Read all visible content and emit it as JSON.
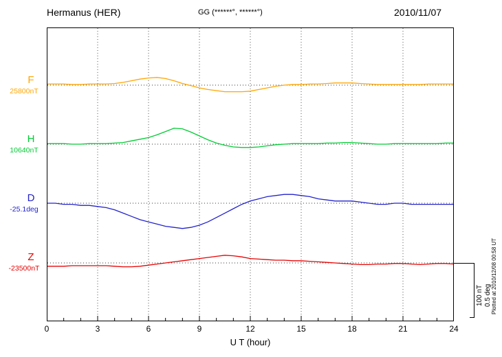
{
  "header": {
    "station": "Hermanus (HER)",
    "coords": "GG (******°, ******°)",
    "date": "2010/11/07"
  },
  "axis": {
    "title": "U T (hour)",
    "ticks": [
      "0",
      "3",
      "6",
      "9",
      "12",
      "15",
      "18",
      "21",
      "24"
    ]
  },
  "scale_bar": {
    "nt_label": "100 nT",
    "deg_label": "0.5 deg"
  },
  "plot_note": "Plotted at 2010/12/08 00:58 UT",
  "chart_data": {
    "type": "line",
    "title": "Hermanus (HER) magnetogram, 2010/11/07",
    "xlabel": "U T (hour)",
    "x_range": [
      0,
      24
    ],
    "x_step": 0.5,
    "x_tick_interval_hours": 3,
    "grid": "dotted vertical gridlines every 3 hours; dotted horizontal baseline for each component",
    "legend_position": "left margin, one colored letter per trace with baseline value beneath",
    "scale_reference": {
      "nT_per_division": 100,
      "deg_per_division": 0.5
    },
    "values_are": "offsets from each component baseline, sampled every 0.5 hour from 0 to 24 UT",
    "series": [
      {
        "name": "F",
        "label": "F",
        "baseline_label": "25800nT",
        "baseline_value": 25800,
        "unit": "nT",
        "color": "#FFA500",
        "values": [
          2,
          2,
          2,
          1,
          1,
          2,
          2,
          2,
          3,
          5,
          8,
          11,
          13,
          14,
          12,
          8,
          3,
          -1,
          -5,
          -8,
          -10,
          -12,
          -12,
          -12,
          -11,
          -8,
          -5,
          -2,
          0,
          1,
          1,
          2,
          2,
          3,
          4,
          4,
          4,
          3,
          2,
          1,
          1,
          1,
          1,
          1,
          1,
          2,
          2,
          2,
          2
        ]
      },
      {
        "name": "H",
        "label": "H",
        "baseline_label": "10640nT",
        "baseline_value": 10640,
        "unit": "nT",
        "color": "#00CC33",
        "values": [
          1,
          1,
          1,
          0,
          0,
          1,
          1,
          1,
          2,
          3,
          6,
          9,
          12,
          17,
          23,
          29,
          28,
          22,
          15,
          8,
          2,
          -2,
          -5,
          -6,
          -6,
          -5,
          -3,
          -1,
          0,
          1,
          1,
          1,
          1,
          2,
          2,
          3,
          3,
          2,
          1,
          0,
          0,
          1,
          1,
          1,
          1,
          1,
          1,
          2,
          2
        ]
      },
      {
        "name": "D",
        "label": "D",
        "baseline_label": "-25.1deg",
        "baseline_value": -25.1,
        "unit": "deg",
        "color": "#2222CC",
        "values": [
          0,
          0,
          -0.01,
          -0.01,
          -0.02,
          -0.02,
          -0.03,
          -0.04,
          -0.06,
          -0.09,
          -0.12,
          -0.15,
          -0.17,
          -0.19,
          -0.21,
          -0.22,
          -0.23,
          -0.22,
          -0.2,
          -0.17,
          -0.13,
          -0.09,
          -0.05,
          -0.01,
          0.02,
          0.04,
          0.06,
          0.07,
          0.08,
          0.08,
          0.07,
          0.06,
          0.04,
          0.03,
          0.02,
          0.02,
          0.02,
          0.01,
          0,
          -0.01,
          -0.01,
          0,
          0,
          -0.01,
          -0.01,
          -0.01,
          -0.01,
          -0.01,
          -0.01
        ]
      },
      {
        "name": "Z",
        "label": "Z",
        "baseline_label": "-23500nT",
        "baseline_value": -23500,
        "unit": "nT",
        "color": "#E80000",
        "values": [
          -6,
          -6,
          -6,
          -5,
          -5,
          -5,
          -5,
          -5,
          -6,
          -7,
          -7,
          -6,
          -4,
          -2,
          0,
          2,
          4,
          6,
          8,
          10,
          12,
          14,
          13,
          11,
          8,
          7,
          6,
          5,
          5,
          4,
          4,
          3,
          2,
          1,
          0,
          -1,
          -2,
          -3,
          -3,
          -2,
          -2,
          -1,
          -1,
          -2,
          -3,
          -2,
          -1,
          -1,
          -2
        ]
      }
    ]
  }
}
